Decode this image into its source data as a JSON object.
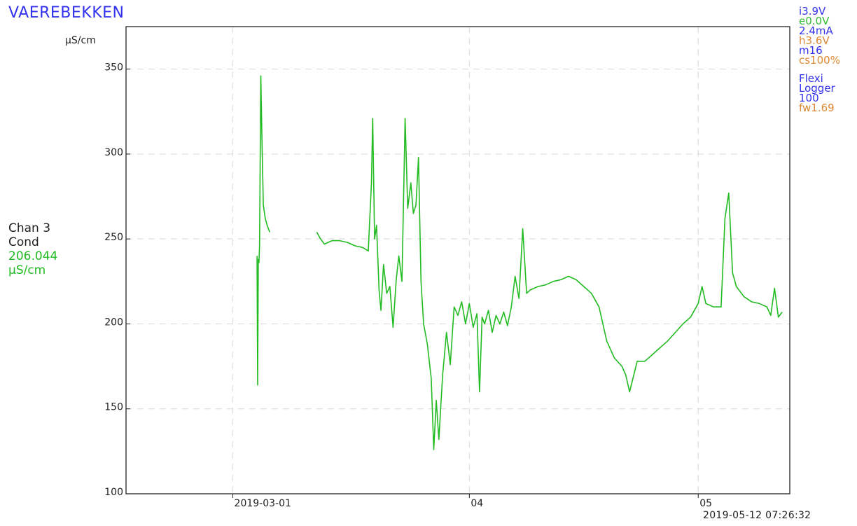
{
  "title": "VAEREBEKKEN",
  "status": [
    {
      "text": "i3.9V",
      "color": "#3333ee"
    },
    {
      "text": "e0.0V",
      "color": "#33bb33"
    },
    {
      "text": "2.4mA",
      "color": "#3333ee"
    },
    {
      "text": "h3.6V",
      "color": "#dd8833"
    },
    {
      "text": "m16",
      "color": "#3333ee"
    },
    {
      "text": "cs100%",
      "color": "#dd8833"
    },
    {
      "text": "",
      "color": ""
    },
    {
      "text": "Flexi",
      "color": "#3333ee"
    },
    {
      "text": "Logger",
      "color": "#3333ee"
    },
    {
      "text": "100",
      "color": "#3333ee"
    },
    {
      "text": "fw1.69",
      "color": "#dd8833"
    }
  ],
  "channel": {
    "name": "Chan 3",
    "type": "Cond",
    "value": "206.044",
    "unit": "µS/cm"
  },
  "timestamp": "2019-05-12 07:26:32",
  "colors": {
    "series": "#22bb22",
    "accent_blue": "#3333ee",
    "accent_orange": "#dd8833",
    "grid": "#d8d8d8"
  },
  "chart_data": {
    "type": "line",
    "ylabel": "µS/cm",
    "ylim": [
      100,
      375
    ],
    "xlim": [
      "2019-02-15",
      "2019-05-13"
    ],
    "yticks": [
      100,
      150,
      200,
      250,
      300,
      350
    ],
    "xticks": [
      {
        "date": "2019-03-01",
        "label": "2019-03-01"
      },
      {
        "date": "2019-04-01",
        "label": "04"
      },
      {
        "date": "2019-05-01",
        "label": "05"
      }
    ],
    "grid": true,
    "series": [
      {
        "segments": [
          [
            [
              "2019-03-04 04:00",
              240
            ],
            [
              "2019-03-04 06:00",
              164
            ],
            [
              "2019-03-04 08:00",
              238
            ],
            [
              "2019-03-04 10:00",
              236
            ],
            [
              "2019-03-04 12:00",
              246
            ],
            [
              "2019-03-04 16:00",
              346
            ],
            [
              "2019-03-04 20:00",
              305
            ],
            [
              "2019-03-05 00:00",
              270
            ],
            [
              "2019-03-05 06:00",
              262
            ],
            [
              "2019-03-05 12:00",
              258
            ],
            [
              "2019-03-05 20:00",
              254
            ]
          ],
          [
            [
              "2019-03-12 00:00",
              254
            ],
            [
              "2019-03-12 12:00",
              250
            ],
            [
              "2019-03-13 00:00",
              247
            ],
            [
              "2019-03-14 00:00",
              249
            ],
            [
              "2019-03-15 00:00",
              249
            ],
            [
              "2019-03-16 00:00",
              248
            ],
            [
              "2019-03-17 00:00",
              246
            ],
            [
              "2019-03-18 00:00",
              245
            ],
            [
              "2019-03-18 18:00",
              243
            ],
            [
              "2019-03-19 04:00",
              283
            ],
            [
              "2019-03-19 08:00",
              321
            ],
            [
              "2019-03-19 14:00",
              250
            ],
            [
              "2019-03-19 20:00",
              258
            ],
            [
              "2019-03-20 04:00",
              220
            ],
            [
              "2019-03-20 10:00",
              208
            ],
            [
              "2019-03-20 18:00",
              235
            ],
            [
              "2019-03-21 04:00",
              218
            ],
            [
              "2019-03-21 14:00",
              222
            ],
            [
              "2019-03-22 00:00",
              198
            ],
            [
              "2019-03-22 10:00",
              226
            ],
            [
              "2019-03-22 18:00",
              240
            ],
            [
              "2019-03-23 04:00",
              225
            ],
            [
              "2019-03-23 14:00",
              321
            ],
            [
              "2019-03-23 22:00",
              268
            ],
            [
              "2019-03-24 08:00",
              283
            ],
            [
              "2019-03-24 16:00",
              265
            ],
            [
              "2019-03-25 00:00",
              270
            ],
            [
              "2019-03-25 08:00",
              298
            ],
            [
              "2019-03-25 16:00",
              225
            ],
            [
              "2019-03-26 00:00",
              200
            ],
            [
              "2019-03-26 12:00",
              188
            ],
            [
              "2019-03-27 00:00",
              168
            ],
            [
              "2019-03-27 08:00",
              126
            ],
            [
              "2019-03-27 16:00",
              155
            ],
            [
              "2019-03-28 00:00",
              132
            ],
            [
              "2019-03-28 12:00",
              170
            ],
            [
              "2019-03-29 00:00",
              195
            ],
            [
              "2019-03-29 12:00",
              176
            ],
            [
              "2019-03-30 00:00",
              210
            ],
            [
              "2019-03-30 12:00",
              205
            ],
            [
              "2019-03-31 00:00",
              213
            ],
            [
              "2019-03-31 12:00",
              200
            ],
            [
              "2019-04-01 00:00",
              212
            ],
            [
              "2019-04-01 12:00",
              198
            ],
            [
              "2019-04-02 00:00",
              206
            ],
            [
              "2019-04-02 08:00",
              160
            ],
            [
              "2019-04-02 16:00",
              204
            ],
            [
              "2019-04-03 00:00",
              200
            ],
            [
              "2019-04-03 12:00",
              208
            ],
            [
              "2019-04-04 00:00",
              195
            ],
            [
              "2019-04-04 12:00",
              205
            ],
            [
              "2019-04-05 00:00",
              200
            ],
            [
              "2019-04-05 12:00",
              207
            ],
            [
              "2019-04-06 00:00",
              199
            ],
            [
              "2019-04-06 12:00",
              210
            ],
            [
              "2019-04-07 00:00",
              228
            ],
            [
              "2019-04-07 12:00",
              215
            ],
            [
              "2019-04-08 00:00",
              256
            ],
            [
              "2019-04-08 12:00",
              218
            ],
            [
              "2019-04-09 00:00",
              220
            ],
            [
              "2019-04-10 00:00",
              222
            ],
            [
              "2019-04-11 00:00",
              223
            ],
            [
              "2019-04-12 00:00",
              225
            ],
            [
              "2019-04-13 00:00",
              226
            ],
            [
              "2019-04-14 00:00",
              228
            ],
            [
              "2019-04-15 00:00",
              226
            ],
            [
              "2019-04-16 00:00",
              222
            ],
            [
              "2019-04-17 00:00",
              218
            ],
            [
              "2019-04-18 00:00",
              210
            ],
            [
              "2019-04-19 00:00",
              190
            ],
            [
              "2019-04-20 00:00",
              180
            ],
            [
              "2019-04-21 00:00",
              175
            ],
            [
              "2019-04-21 12:00",
              170
            ],
            [
              "2019-04-22 00:00",
              160
            ],
            [
              "2019-04-23 00:00",
              178
            ],
            [
              "2019-04-24 00:00",
              178
            ],
            [
              "2019-04-25 00:00",
              182
            ],
            [
              "2019-04-26 00:00",
              186
            ],
            [
              "2019-04-27 00:00",
              190
            ],
            [
              "2019-04-28 00:00",
              195
            ],
            [
              "2019-04-29 00:00",
              200
            ],
            [
              "2019-04-30 00:00",
              204
            ],
            [
              "2019-05-01 00:00",
              212
            ],
            [
              "2019-05-01 12:00",
              222
            ],
            [
              "2019-05-02 00:00",
              212
            ],
            [
              "2019-05-03 00:00",
              210
            ],
            [
              "2019-05-04 00:00",
              210
            ],
            [
              "2019-05-04 12:00",
              262
            ],
            [
              "2019-05-05 00:00",
              277
            ],
            [
              "2019-05-05 12:00",
              230
            ],
            [
              "2019-05-06 00:00",
              222
            ],
            [
              "2019-05-07 00:00",
              216
            ],
            [
              "2019-05-08 00:00",
              213
            ],
            [
              "2019-05-09 00:00",
              212
            ],
            [
              "2019-05-10 00:00",
              210
            ],
            [
              "2019-05-10 12:00",
              205
            ],
            [
              "2019-05-11 00:00",
              221
            ],
            [
              "2019-05-11 12:00",
              204
            ],
            [
              "2019-05-12 00:00",
              207
            ]
          ]
        ]
      }
    ]
  }
}
